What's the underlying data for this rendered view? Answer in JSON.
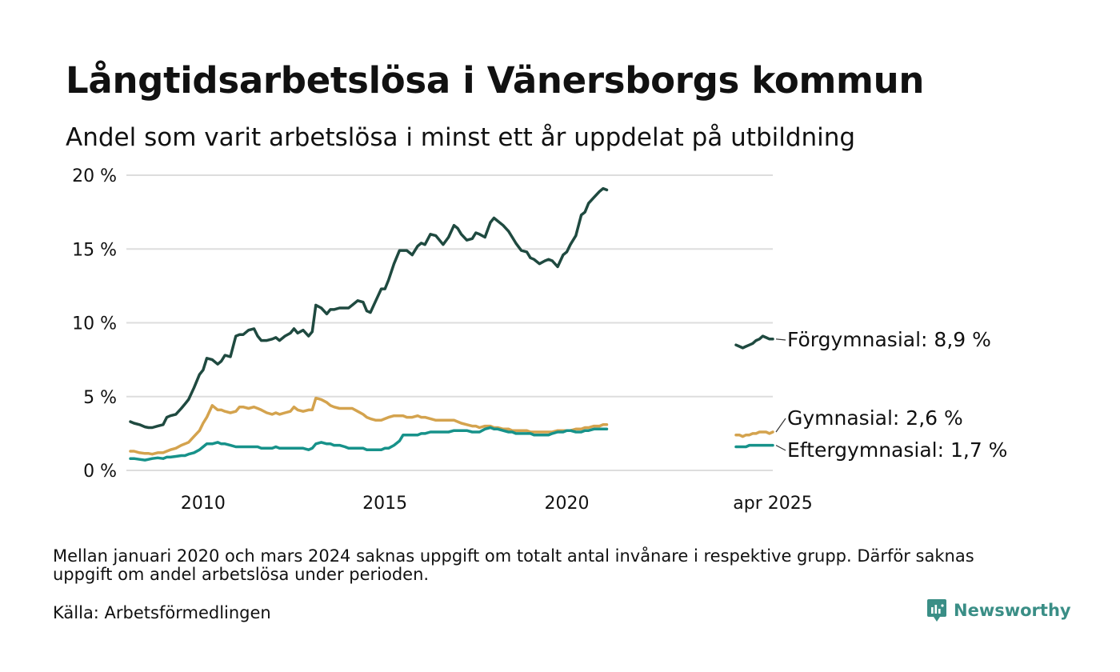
{
  "title": "Långtidsarbetslösa i Vänersborgs kommun",
  "subtitle": "Andel som varit arbetslösa i minst ett år uppdelat på utbildning",
  "footnote": "Mellan januari 2020 och mars 2024 saknas uppgift om totalt antal invånare i respektive grupp. Därför saknas uppgift om andel arbetslösa under perioden.",
  "source": "Källa: Arbetsförmedlingen",
  "brand": "Newsworthy",
  "colors": {
    "forgymnasial": "#1f4a40",
    "gymnasial": "#d4a34e",
    "eftergymnasial": "#17928a",
    "grid": "#dddddd",
    "brand": "#3a8e86"
  },
  "chart_data": {
    "type": "line",
    "y_unit": "%",
    "ylim": [
      0,
      20
    ],
    "yticks": [
      0,
      5,
      10,
      15,
      20
    ],
    "ytick_labels": [
      "0 %",
      "5 %",
      "10 %",
      "15 %",
      "20 %"
    ],
    "xlim_main": [
      2008.0,
      2021.2
    ],
    "xticks": [
      2010,
      2015,
      2020
    ],
    "xtick_labels": [
      "2010",
      "2015",
      "2020"
    ],
    "recent_label": "apr 2025",
    "grid": true,
    "legend": "end-labels",
    "series": [
      {
        "name": "Förgymnasial",
        "end_label": "Förgymnasial: 8,9 %",
        "x": [
          2008.0,
          2008.1,
          2008.25,
          2008.4,
          2008.5,
          2008.6,
          2008.75,
          2008.9,
          2009.0,
          2009.1,
          2009.25,
          2009.4,
          2009.5,
          2009.6,
          2009.75,
          2009.9,
          2010.0,
          2010.1,
          2010.25,
          2010.4,
          2010.5,
          2010.6,
          2010.75,
          2010.9,
          2011.0,
          2011.1,
          2011.25,
          2011.4,
          2011.5,
          2011.6,
          2011.75,
          2011.9,
          2012.0,
          2012.1,
          2012.25,
          2012.4,
          2012.5,
          2012.6,
          2012.75,
          2012.9,
          2013.0,
          2013.1,
          2013.25,
          2013.4,
          2013.5,
          2013.6,
          2013.75,
          2013.9,
          2014.0,
          2014.1,
          2014.25,
          2014.4,
          2014.5,
          2014.6,
          2014.75,
          2014.9,
          2015.0,
          2015.1,
          2015.25,
          2015.4,
          2015.5,
          2015.6,
          2015.75,
          2015.9,
          2016.0,
          2016.1,
          2016.25,
          2016.4,
          2016.5,
          2016.6,
          2016.75,
          2016.9,
          2017.0,
          2017.1,
          2017.25,
          2017.4,
          2017.5,
          2017.6,
          2017.75,
          2017.9,
          2018.0,
          2018.1,
          2018.25,
          2018.4,
          2018.5,
          2018.6,
          2018.75,
          2018.9,
          2019.0,
          2019.1,
          2019.25,
          2019.4,
          2019.5,
          2019.6,
          2019.75,
          2019.9,
          2020.0,
          2020.1,
          2020.25,
          2020.4,
          2020.5,
          2020.6,
          2020.75,
          2020.9,
          2021.0,
          2021.1
        ],
        "y": [
          3.3,
          3.2,
          3.1,
          2.95,
          2.9,
          2.9,
          3.0,
          3.1,
          3.6,
          3.7,
          3.8,
          4.2,
          4.5,
          4.8,
          5.6,
          6.5,
          6.8,
          7.6,
          7.5,
          7.2,
          7.4,
          7.8,
          7.7,
          9.1,
          9.2,
          9.2,
          9.5,
          9.6,
          9.1,
          8.8,
          8.8,
          8.9,
          9.0,
          8.8,
          9.1,
          9.3,
          9.6,
          9.3,
          9.5,
          9.1,
          9.4,
          11.2,
          11.0,
          10.6,
          10.9,
          10.9,
          11.0,
          11.0,
          11.0,
          11.2,
          11.5,
          11.4,
          10.8,
          10.7,
          11.5,
          12.3,
          12.3,
          12.9,
          14.0,
          14.9,
          14.9,
          14.9,
          14.6,
          15.2,
          15.4,
          15.3,
          16.0,
          15.9,
          15.6,
          15.3,
          15.8,
          16.6,
          16.4,
          16.0,
          15.6,
          15.7,
          16.1,
          16.0,
          15.8,
          16.8,
          17.1,
          16.9,
          16.6,
          16.2,
          15.8,
          15.4,
          14.9,
          14.8,
          14.4,
          14.3,
          14.0,
          14.2,
          14.3,
          14.2,
          13.8,
          14.6,
          14.8,
          15.3,
          15.9,
          17.3,
          17.5,
          18.1,
          18.5,
          18.9,
          19.1,
          19.0
        ]
      },
      {
        "name": "Gymnasial",
        "end_label": "Gymnasial: 2,6 %",
        "x": [
          2008.0,
          2008.1,
          2008.25,
          2008.4,
          2008.5,
          2008.6,
          2008.75,
          2008.9,
          2009.0,
          2009.1,
          2009.25,
          2009.4,
          2009.5,
          2009.6,
          2009.75,
          2009.9,
          2010.0,
          2010.1,
          2010.25,
          2010.4,
          2010.5,
          2010.6,
          2010.75,
          2010.9,
          2011.0,
          2011.1,
          2011.25,
          2011.4,
          2011.5,
          2011.6,
          2011.75,
          2011.9,
          2012.0,
          2012.1,
          2012.25,
          2012.4,
          2012.5,
          2012.6,
          2012.75,
          2012.9,
          2013.0,
          2013.1,
          2013.25,
          2013.4,
          2013.5,
          2013.6,
          2013.75,
          2013.9,
          2014.0,
          2014.1,
          2014.25,
          2014.4,
          2014.5,
          2014.6,
          2014.75,
          2014.9,
          2015.0,
          2015.1,
          2015.25,
          2015.4,
          2015.5,
          2015.6,
          2015.75,
          2015.9,
          2016.0,
          2016.1,
          2016.25,
          2016.4,
          2016.5,
          2016.6,
          2016.75,
          2016.9,
          2017.0,
          2017.1,
          2017.25,
          2017.4,
          2017.5,
          2017.6,
          2017.75,
          2017.9,
          2018.0,
          2018.1,
          2018.25,
          2018.4,
          2018.5,
          2018.6,
          2018.75,
          2018.9,
          2019.0,
          2019.1,
          2019.25,
          2019.4,
          2019.5,
          2019.6,
          2019.75,
          2019.9,
          2020.0,
          2020.1,
          2020.25,
          2020.4,
          2020.5,
          2020.6,
          2020.75,
          2020.9,
          2021.0,
          2021.1
        ],
        "y": [
          1.3,
          1.3,
          1.2,
          1.15,
          1.15,
          1.1,
          1.2,
          1.2,
          1.3,
          1.4,
          1.5,
          1.7,
          1.8,
          1.9,
          2.3,
          2.7,
          3.2,
          3.6,
          4.4,
          4.1,
          4.1,
          4.0,
          3.9,
          4.0,
          4.3,
          4.3,
          4.2,
          4.3,
          4.2,
          4.1,
          3.9,
          3.8,
          3.9,
          3.8,
          3.9,
          4.0,
          4.3,
          4.1,
          4.0,
          4.1,
          4.1,
          4.9,
          4.8,
          4.6,
          4.4,
          4.3,
          4.2,
          4.2,
          4.2,
          4.2,
          4.0,
          3.8,
          3.6,
          3.5,
          3.4,
          3.4,
          3.5,
          3.6,
          3.7,
          3.7,
          3.7,
          3.6,
          3.6,
          3.7,
          3.6,
          3.6,
          3.5,
          3.4,
          3.4,
          3.4,
          3.4,
          3.4,
          3.3,
          3.2,
          3.1,
          3.0,
          3.0,
          2.9,
          3.0,
          3.0,
          2.9,
          2.9,
          2.8,
          2.8,
          2.7,
          2.7,
          2.7,
          2.7,
          2.6,
          2.6,
          2.6,
          2.6,
          2.6,
          2.6,
          2.7,
          2.7,
          2.7,
          2.7,
          2.8,
          2.8,
          2.9,
          2.9,
          3.0,
          3.0,
          3.1,
          3.1
        ]
      },
      {
        "name": "Eftergymnasial",
        "end_label": "Eftergymnasial: 1,7 %",
        "x": [
          2008.0,
          2008.1,
          2008.25,
          2008.4,
          2008.5,
          2008.6,
          2008.75,
          2008.9,
          2009.0,
          2009.1,
          2009.25,
          2009.4,
          2009.5,
          2009.6,
          2009.75,
          2009.9,
          2010.0,
          2010.1,
          2010.25,
          2010.4,
          2010.5,
          2010.6,
          2010.75,
          2010.9,
          2011.0,
          2011.1,
          2011.25,
          2011.4,
          2011.5,
          2011.6,
          2011.75,
          2011.9,
          2012.0,
          2012.1,
          2012.25,
          2012.4,
          2012.5,
          2012.6,
          2012.75,
          2012.9,
          2013.0,
          2013.1,
          2013.25,
          2013.4,
          2013.5,
          2013.6,
          2013.75,
          2013.9,
          2014.0,
          2014.1,
          2014.25,
          2014.4,
          2014.5,
          2014.6,
          2014.75,
          2014.9,
          2015.0,
          2015.1,
          2015.25,
          2015.4,
          2015.5,
          2015.6,
          2015.75,
          2015.9,
          2016.0,
          2016.1,
          2016.25,
          2016.4,
          2016.5,
          2016.6,
          2016.75,
          2016.9,
          2017.0,
          2017.1,
          2017.25,
          2017.4,
          2017.5,
          2017.6,
          2017.75,
          2017.9,
          2018.0,
          2018.1,
          2018.25,
          2018.4,
          2018.5,
          2018.6,
          2018.75,
          2018.9,
          2019.0,
          2019.1,
          2019.25,
          2019.4,
          2019.5,
          2019.6,
          2019.75,
          2019.9,
          2020.0,
          2020.1,
          2020.25,
          2020.4,
          2020.5,
          2020.6,
          2020.75,
          2020.9,
          2021.0,
          2021.1
        ],
        "y": [
          0.8,
          0.8,
          0.75,
          0.7,
          0.75,
          0.8,
          0.85,
          0.8,
          0.9,
          0.9,
          0.95,
          1.0,
          1.0,
          1.1,
          1.2,
          1.4,
          1.6,
          1.8,
          1.8,
          1.9,
          1.8,
          1.8,
          1.7,
          1.6,
          1.6,
          1.6,
          1.6,
          1.6,
          1.6,
          1.5,
          1.5,
          1.5,
          1.6,
          1.5,
          1.5,
          1.5,
          1.5,
          1.5,
          1.5,
          1.4,
          1.5,
          1.8,
          1.9,
          1.8,
          1.8,
          1.7,
          1.7,
          1.6,
          1.5,
          1.5,
          1.5,
          1.5,
          1.4,
          1.4,
          1.4,
          1.4,
          1.5,
          1.5,
          1.7,
          2.0,
          2.4,
          2.4,
          2.4,
          2.4,
          2.5,
          2.5,
          2.6,
          2.6,
          2.6,
          2.6,
          2.6,
          2.7,
          2.7,
          2.7,
          2.7,
          2.6,
          2.6,
          2.6,
          2.8,
          2.9,
          2.8,
          2.8,
          2.7,
          2.6,
          2.6,
          2.5,
          2.5,
          2.5,
          2.5,
          2.4,
          2.4,
          2.4,
          2.4,
          2.5,
          2.6,
          2.6,
          2.7,
          2.7,
          2.6,
          2.6,
          2.7,
          2.7,
          2.8,
          2.8,
          2.8,
          2.8
        ]
      }
    ],
    "recent": [
      {
        "series": "Förgymnasial",
        "y": [
          8.5,
          8.4,
          8.3,
          8.4,
          8.5,
          8.6,
          8.8,
          8.9,
          9.1,
          9.0,
          8.9,
          8.9
        ]
      },
      {
        "series": "Gymnasial",
        "y": [
          2.4,
          2.4,
          2.3,
          2.4,
          2.4,
          2.5,
          2.5,
          2.6,
          2.6,
          2.6,
          2.5,
          2.6
        ]
      },
      {
        "series": "Eftergymnasial",
        "y": [
          1.6,
          1.6,
          1.6,
          1.6,
          1.7,
          1.7,
          1.7,
          1.7,
          1.7,
          1.7,
          1.7,
          1.7
        ]
      }
    ]
  }
}
